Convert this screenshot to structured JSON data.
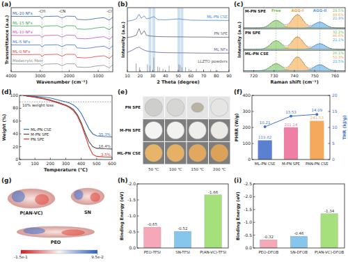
{
  "chart_data": [
    {
      "panel": "(a)",
      "type": "line",
      "x_label": "Wavenumber (cm⁻¹)",
      "y_label": "Transmittance (a.u.)",
      "x": [
        4000,
        3500,
        3000,
        2940,
        2850,
        2400,
        2245,
        2100,
        1800,
        1730,
        1450,
        1250,
        1100,
        800,
        620,
        500
      ],
      "xlim": [
        4000,
        500
      ],
      "xticks": [
        4000,
        3000,
        2000,
        1000
      ],
      "ylim": [
        0,
        7.4
      ],
      "tick_labels": "x",
      "series": [
        {
          "name": "Modacrylic fiber",
          "color": "#8a8a8a",
          "values": [
            0.9,
            0.88,
            0.9,
            0.65,
            0.88,
            0.92,
            0.7,
            0.92,
            0.9,
            0.55,
            0.5,
            0.55,
            0.65,
            0.75,
            0.45,
            0.8
          ]
        },
        {
          "name": "ML-0 NFs",
          "color": "#e0403a",
          "values": [
            2.0,
            1.98,
            2.0,
            1.75,
            1.98,
            2.02,
            1.8,
            2.02,
            2.0,
            1.65,
            1.6,
            1.65,
            1.75,
            1.85,
            1.55,
            1.9
          ]
        },
        {
          "name": "ML-5 NFs",
          "color": "#3f6fd1",
          "values": [
            3.1,
            3.08,
            3.1,
            2.85,
            3.08,
            3.12,
            2.9,
            3.12,
            3.1,
            2.75,
            2.7,
            2.75,
            2.85,
            2.95,
            2.65,
            3.0
          ]
        },
        {
          "name": "ML-10 NFs",
          "color": "#c04fc0",
          "values": [
            4.2,
            4.18,
            4.2,
            3.95,
            4.18,
            4.22,
            4.0,
            4.22,
            4.2,
            3.85,
            3.8,
            3.85,
            3.95,
            4.05,
            3.75,
            4.1
          ]
        },
        {
          "name": "ML-15 NFs",
          "color": "#3fa34d",
          "values": [
            5.3,
            5.28,
            5.3,
            5.05,
            5.28,
            5.32,
            5.1,
            5.32,
            5.3,
            4.95,
            4.9,
            4.95,
            5.05,
            5.15,
            4.85,
            5.2
          ]
        },
        {
          "name": "ML-20 NFs",
          "color": "#2f5fb3",
          "values": [
            6.4,
            6.38,
            6.4,
            6.15,
            6.38,
            6.42,
            6.2,
            6.42,
            6.4,
            6.05,
            6.0,
            6.05,
            6.15,
            6.25,
            5.95,
            6.3
          ]
        }
      ],
      "annotations": [
        {
          "text": "-CH",
          "x": 2940
        },
        {
          "text": "-CN",
          "x": 2245
        },
        {
          "text": "-Cl",
          "x": 620
        }
      ]
    },
    {
      "panel": "(b)",
      "type": "line",
      "x_label": "2 Theta (degree)",
      "y_label": "Intensity (a.u.)",
      "xlim": [
        10,
        90
      ],
      "xticks": [
        10,
        20,
        30,
        40,
        50,
        60,
        70,
        80,
        90
      ],
      "ylim": [
        0,
        4.3
      ],
      "tick_labels": "x",
      "highlight_x": [
        27.8,
        30.8,
        50.5,
        53
      ],
      "series": [
        {
          "name": "LLZTO powders",
          "type": "stick",
          "color": "#8c8c8c",
          "x": [
            16.9,
            19.5,
            25.8,
            27.8,
            30.8,
            33.9,
            35.3,
            38.0,
            42.9,
            50.5,
            51.6,
            53.0,
            55.8,
            58.5,
            64.3,
            70.0,
            75.6,
            80.8
          ],
          "values": [
            0.55,
            0.3,
            0.5,
            0.4,
            0.95,
            0.35,
            0.3,
            0.2,
            0.4,
            0.5,
            0.45,
            0.3,
            0.3,
            0.2,
            0.2,
            0.15,
            0.15,
            0.1
          ]
        },
        {
          "name": "ML NFs",
          "color": "#6a5a9c",
          "x": [
            10,
            14,
            17,
            19.2,
            21,
            23.3,
            25,
            27.8,
            30.8,
            34,
            40,
            50.5,
            53,
            60,
            70,
            80,
            90
          ],
          "values": [
            1.3,
            1.45,
            1.6,
            1.65,
            1.55,
            1.45,
            1.4,
            1.35,
            1.33,
            1.3,
            1.28,
            1.27,
            1.27,
            1.26,
            1.25,
            1.25,
            1.25
          ]
        },
        {
          "name": "PN SPE",
          "color": "#5b5b7a",
          "x": [
            10,
            14,
            17,
            19.2,
            21,
            23.3,
            25,
            27.8,
            30.8,
            34,
            40,
            50.5,
            53,
            60,
            70,
            80,
            90
          ],
          "values": [
            2.3,
            2.35,
            2.45,
            2.9,
            2.5,
            2.75,
            2.45,
            2.4,
            2.38,
            2.36,
            2.35,
            2.34,
            2.34,
            2.33,
            2.33,
            2.32,
            2.32
          ]
        },
        {
          "name": "ML-PN CSE",
          "color": "#4a86c8",
          "x": [
            10,
            14,
            17,
            19.2,
            21,
            23.3,
            25,
            27.8,
            30.8,
            34,
            40,
            50.5,
            53,
            60,
            70,
            80,
            90
          ],
          "values": [
            3.4,
            3.45,
            3.55,
            3.85,
            3.6,
            3.75,
            3.55,
            3.6,
            3.7,
            3.5,
            3.48,
            3.55,
            3.52,
            3.46,
            3.45,
            3.45,
            3.44
          ]
        }
      ]
    },
    {
      "panel": "(c)",
      "type": "area",
      "x_label": "Raman shift (cm⁻¹)",
      "y_label": "Intensity (a.u.)",
      "xlim": [
        715,
        765
      ],
      "xticks": [
        720,
        730,
        740,
        750,
        760
      ],
      "tick_labels": "x",
      "peak_names": [
        "Free",
        "AGG-I",
        "AGG-II"
      ],
      "peak_centers": [
        731,
        741.5,
        752.5
      ],
      "colors": [
        "#6fbf4f",
        "#f2a33a",
        "#4fa3e0"
      ],
      "series": [
        {
          "name": "M-PN SPE",
          "values": [
            28.5,
            49.6,
            21.9
          ],
          "value_labels": [
            "28.5%",
            "49.6%",
            "21.9%"
          ]
        },
        {
          "name": "PN SPE",
          "values": [
            32.2,
            46.6,
            21.1
          ],
          "value_labels": [
            "32.2%",
            "46.6%",
            "21.1%"
          ]
        },
        {
          "name": "ML-PN CSE",
          "values": [
            26.1,
            51.3,
            22.5
          ],
          "value_labels": [
            "26.1%",
            "51.3%",
            "22.5%"
          ]
        }
      ]
    },
    {
      "panel": "(d)",
      "type": "line",
      "x_label": "Temperature (℃)",
      "y_label": "Weight (%)",
      "xlim": [
        0,
        600
      ],
      "xticks": [
        0,
        100,
        200,
        300,
        400,
        500,
        600
      ],
      "ylim": [
        0,
        100
      ],
      "yticks": [
        0,
        20,
        40,
        60,
        80,
        100
      ],
      "legend": "lower left",
      "x": [
        25,
        50,
        100,
        150,
        200,
        250,
        300,
        325,
        350,
        375,
        400,
        425,
        450,
        475,
        500,
        550,
        600
      ],
      "series": [
        {
          "name": "ML-PN CSE",
          "color": "#3b6fb6",
          "values": [
            100,
            99.5,
            98.5,
            97.5,
            96,
            93,
            90,
            88,
            85,
            80,
            72,
            60,
            48,
            40,
            37,
            35.8,
            35.3
          ],
          "end_label": "35.3%"
        },
        {
          "name": "M-PN SPE",
          "color": "#4a4a4a",
          "values": [
            100,
            99,
            97.5,
            95.5,
            93,
            89,
            85,
            82,
            78,
            70,
            58,
            42,
            28,
            20,
            17.5,
            16.8,
            16.4
          ],
          "end_label": "16.4%"
        },
        {
          "name": "PN SPE",
          "color": "#d9352b",
          "values": [
            100,
            99,
            97,
            95,
            92,
            88,
            84,
            81,
            76,
            68,
            55,
            38,
            20,
            8,
            5,
            4,
            3.5
          ],
          "end_label": "3.5%"
        }
      ],
      "annotations": [
        {
          "text": "10% weight loss",
          "y": 90
        }
      ]
    },
    {
      "panel": "(f)",
      "type": "bar",
      "categories": [
        "ML-PN CSE",
        "M-PN SPE",
        "PAN-PN CSE"
      ],
      "y_label": "PHRR (W/g)",
      "y2_label": "THR (kJ/g)",
      "ylim": [
        0,
        400
      ],
      "yticks": [
        0,
        100,
        200,
        300,
        400
      ],
      "y2lim": [
        0,
        20
      ],
      "y2ticks": [
        0,
        5,
        10,
        15,
        20
      ],
      "data_labels": true,
      "series": [
        {
          "type": "bar",
          "colors": [
            "#5b7fd1",
            "#ee7fa5",
            "#f4a95c"
          ],
          "values": [
            119.82,
            201.14,
            241.53
          ]
        },
        {
          "type": "line",
          "axis": "y2",
          "color": "#3f73c9",
          "marker": "circle",
          "values": [
            10.21,
            13.53,
            14.09
          ]
        }
      ]
    },
    {
      "panel": "(h)",
      "type": "bar",
      "categories": [
        "PEO-TFSI",
        "SN-TFSI",
        "P(AN-VC)-TFSI"
      ],
      "values": [
        -0.65,
        -0.52,
        -1.66
      ],
      "colors": [
        "#f7a8b8",
        "#86c5ec",
        "#a6e07c"
      ],
      "y_label": "Binding Energy (eV)",
      "ylim": [
        0,
        -2
      ],
      "yticks": [
        {
          "value": 0,
          "label": "0.0"
        },
        -0.5,
        {
          "value": -1,
          "label": "-1.0"
        },
        -1.5,
        {
          "value": -2,
          "label": "-2.0"
        }
      ],
      "data_labels": true
    },
    {
      "panel": "(i)",
      "type": "bar",
      "categories": [
        "PEO-DFOB",
        "SN-DFOB",
        "P(AN-VC)-DFOB"
      ],
      "values": [
        -0.32,
        -0.46,
        -1.34
      ],
      "colors": [
        "#f7a8b8",
        "#86c5ec",
        "#a6e07c"
      ],
      "y_label": "Binding Energy (eV)",
      "ylim": [
        0,
        -2.5
      ],
      "yticks": [
        {
          "value": 0,
          "label": "0.0"
        },
        -0.5,
        {
          "value": -1,
          "label": "-1.0"
        },
        -1.5,
        {
          "value": -2,
          "label": "-2.0"
        },
        -2.5
      ],
      "data_labels": true
    }
  ],
  "photos": {
    "panel": "(e)",
    "rows": [
      "PN SPE",
      "M-PN SPE",
      "ML-PN CSE"
    ],
    "columns": [
      "50 ℃",
      "100 ℃",
      "150 ℃",
      "200 ℃"
    ]
  },
  "esp_map": {
    "panel": "(g)",
    "molecules": [
      "P(AN-VC)",
      "SN",
      "PEO"
    ],
    "colorbar": {
      "range": [
        -0.15,
        0.095
      ],
      "ticks": [
        {
          "value": -0.15,
          "label": "-1.5e-1"
        },
        {
          "value": 0.095,
          "label": "9.5e-2"
        }
      ]
    }
  }
}
